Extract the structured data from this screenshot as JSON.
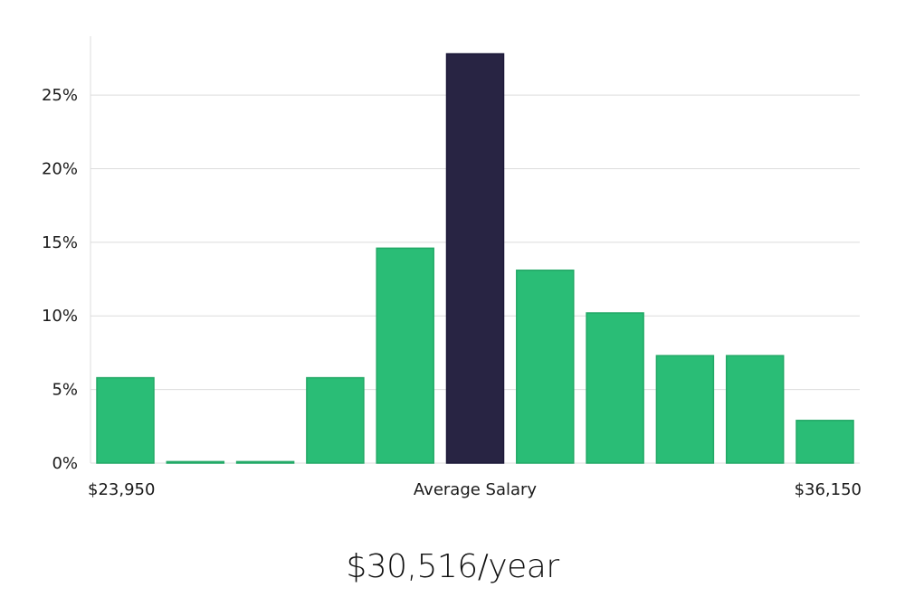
{
  "chart_data": {
    "type": "bar",
    "values": [
      5.8,
      0.1,
      0.1,
      5.8,
      14.6,
      27.8,
      13.1,
      10.2,
      7.3,
      7.3,
      2.9
    ],
    "highlight_index": 5,
    "ylim": [
      0,
      29
    ],
    "yticks": [
      0,
      5,
      10,
      15,
      20,
      25
    ],
    "ytick_suffix": "%",
    "x_min_label": "$23,950",
    "x_center_label": "Average Salary",
    "x_max_label": "$36,150",
    "bar_color": "#2abd76",
    "highlight_color": "#282443",
    "grid": true
  },
  "headline": "$30,516/year"
}
